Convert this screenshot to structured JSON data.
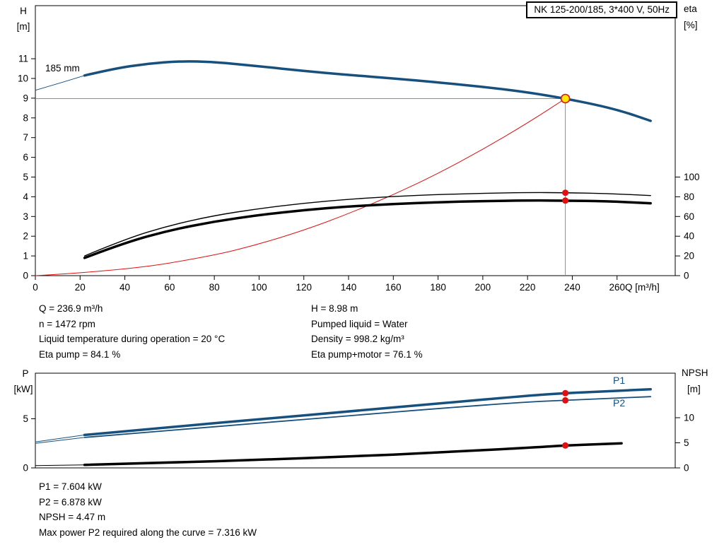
{
  "title_box": "NK 125-200/185, 3*400 V, 50Hz",
  "colors": {
    "curve_blue": "#17507d",
    "curve_red": "#e01010",
    "duty_yellow": "#ffe600",
    "crosshair_gray": "#8c8c8c",
    "curve_black": "#000000"
  },
  "chart_data": [
    {
      "type": "line",
      "name": "QH and efficiency curves",
      "x_label": "Q [m³/h]",
      "y_left_label": [
        "H",
        "[m]"
      ],
      "y_right_label": [
        "eta",
        "[%]"
      ],
      "x_ticks": [
        0,
        20,
        40,
        60,
        80,
        100,
        120,
        140,
        160,
        180,
        200,
        220,
        240,
        260
      ],
      "xlim": [
        0,
        286
      ],
      "y_left_ticks": [
        0,
        1,
        2,
        3,
        4,
        5,
        6,
        7,
        8,
        9,
        10,
        11
      ],
      "y_right_ticks": [
        0,
        20,
        40,
        60,
        80,
        100
      ],
      "impeller_label": "185 mm",
      "duty_point": {
        "q": 236.9,
        "h": 8.98
      },
      "eta_points": {
        "pump": 84.1,
        "pump_motor": 76.1
      },
      "series": [
        {
          "name": "head-lead",
          "axis": "left",
          "color": "blue",
          "width": 1,
          "points": [
            [
              0,
              9.4
            ],
            [
              12,
              9.8
            ],
            [
              22,
              10.15
            ]
          ]
        },
        {
          "name": "head-185mm",
          "axis": "left",
          "color": "blue",
          "width": 3.5,
          "points": [
            [
              22,
              10.15
            ],
            [
              35,
              10.5
            ],
            [
              50,
              10.75
            ],
            [
              65,
              10.88
            ],
            [
              80,
              10.84
            ],
            [
              100,
              10.62
            ],
            [
              120,
              10.38
            ],
            [
              140,
              10.18
            ],
            [
              160,
              10.0
            ],
            [
              180,
              9.8
            ],
            [
              200,
              9.58
            ],
            [
              220,
              9.3
            ],
            [
              236.9,
              8.98
            ],
            [
              250,
              8.68
            ],
            [
              262,
              8.35
            ],
            [
              275,
              7.85
            ]
          ]
        },
        {
          "name": "system-curve",
          "axis": "left",
          "color": "red",
          "width": 1,
          "points": [
            [
              0,
              0
            ],
            [
              40,
              0.26
            ],
            [
              80,
              1.02
            ],
            [
              100,
              1.6
            ],
            [
              120,
              2.3
            ],
            [
              140,
              3.14
            ],
            [
              160,
              4.1
            ],
            [
              180,
              5.18
            ],
            [
              200,
              6.4
            ],
            [
              220,
              7.74
            ],
            [
              236.9,
              8.98
            ]
          ]
        },
        {
          "name": "eta-pump",
          "axis": "right",
          "color": "black",
          "width": 1.4,
          "points": [
            [
              22,
              20
            ],
            [
              40,
              37
            ],
            [
              60,
              51
            ],
            [
              80,
              61
            ],
            [
              100,
              68
            ],
            [
              120,
              73.5
            ],
            [
              140,
              77.5
            ],
            [
              160,
              80.3
            ],
            [
              180,
              82.3
            ],
            [
              200,
              83.5
            ],
            [
              220,
              84.3
            ],
            [
              236.9,
              84.1
            ],
            [
              255,
              83.4
            ],
            [
              275,
              81.2
            ]
          ]
        },
        {
          "name": "eta-pump-motor",
          "axis": "right",
          "color": "black",
          "width": 3.5,
          "points": [
            [
              22,
              18
            ],
            [
              40,
              33.5
            ],
            [
              60,
              46
            ],
            [
              80,
              55
            ],
            [
              100,
              61.5
            ],
            [
              120,
              66.5
            ],
            [
              140,
              70.2
            ],
            [
              160,
              72.7
            ],
            [
              180,
              74.5
            ],
            [
              200,
              75.6
            ],
            [
              220,
              76.3
            ],
            [
              236.9,
              76.1
            ],
            [
              255,
              75.5
            ],
            [
              275,
              73.4
            ]
          ]
        }
      ]
    },
    {
      "type": "line",
      "name": "Power and NPSH curves",
      "y_left_label": [
        "P",
        "[kW]"
      ],
      "y_right_label": [
        "NPSH",
        "[m]"
      ],
      "y_left_ticks": [
        0,
        5
      ],
      "y_right_ticks": [
        0,
        5,
        10
      ],
      "curve_labels": [
        "P1",
        "P2"
      ],
      "duty": {
        "q": 236.9,
        "p1": 7.604,
        "p2": 6.878,
        "npsh": 4.47
      },
      "series": [
        {
          "name": "p1-lead",
          "axis": "left",
          "color": "blue",
          "width": 1,
          "points": [
            [
              0,
              2.65
            ],
            [
              22,
              3.35
            ]
          ]
        },
        {
          "name": "p1",
          "axis": "left",
          "color": "blue",
          "width": 3.5,
          "points": [
            [
              22,
              3.35
            ],
            [
              60,
              4.15
            ],
            [
              100,
              4.95
            ],
            [
              140,
              5.75
            ],
            [
              180,
              6.55
            ],
            [
              220,
              7.35
            ],
            [
              236.9,
              7.604
            ],
            [
              255,
              7.8
            ],
            [
              275,
              8.0
            ]
          ]
        },
        {
          "name": "p2-lead",
          "axis": "left",
          "color": "blue",
          "width": 1,
          "points": [
            [
              0,
              2.5
            ],
            [
              22,
              3.1
            ]
          ]
        },
        {
          "name": "p2",
          "axis": "left",
          "color": "blue",
          "width": 1.8,
          "points": [
            [
              22,
              3.1
            ],
            [
              60,
              3.82
            ],
            [
              100,
              4.55
            ],
            [
              140,
              5.3
            ],
            [
              180,
              6.05
            ],
            [
              220,
              6.72
            ],
            [
              236.9,
              6.878
            ],
            [
              255,
              7.06
            ],
            [
              275,
              7.25
            ]
          ]
        },
        {
          "name": "npsh-lead",
          "axis": "right",
          "color": "black",
          "width": 1,
          "points": [
            [
              0,
              0.45
            ],
            [
              22,
              0.6
            ]
          ]
        },
        {
          "name": "npsh",
          "axis": "right",
          "color": "black",
          "width": 3.5,
          "points": [
            [
              22,
              0.6
            ],
            [
              60,
              1.05
            ],
            [
              100,
              1.6
            ],
            [
              140,
              2.25
            ],
            [
              180,
              3.05
            ],
            [
              220,
              4.0
            ],
            [
              236.9,
              4.47
            ],
            [
              262,
              4.9
            ]
          ]
        }
      ]
    }
  ],
  "info_top_left": [
    "Q = 236.9 m³/h",
    "n = 1472 rpm",
    "Liquid temperature during operation = 20 °C",
    "Eta pump = 84.1 %"
  ],
  "info_top_right": [
    "H = 8.98 m",
    "Pumped liquid = Water",
    "Density = 998.2 kg/m³",
    "Eta pump+motor = 76.1 %"
  ],
  "info_bottom": [
    "P1 = 7.604 kW",
    "P2 = 6.878 kW",
    "NPSH = 4.47 m",
    "Max power P2 required along the curve = 7.316 kW"
  ]
}
